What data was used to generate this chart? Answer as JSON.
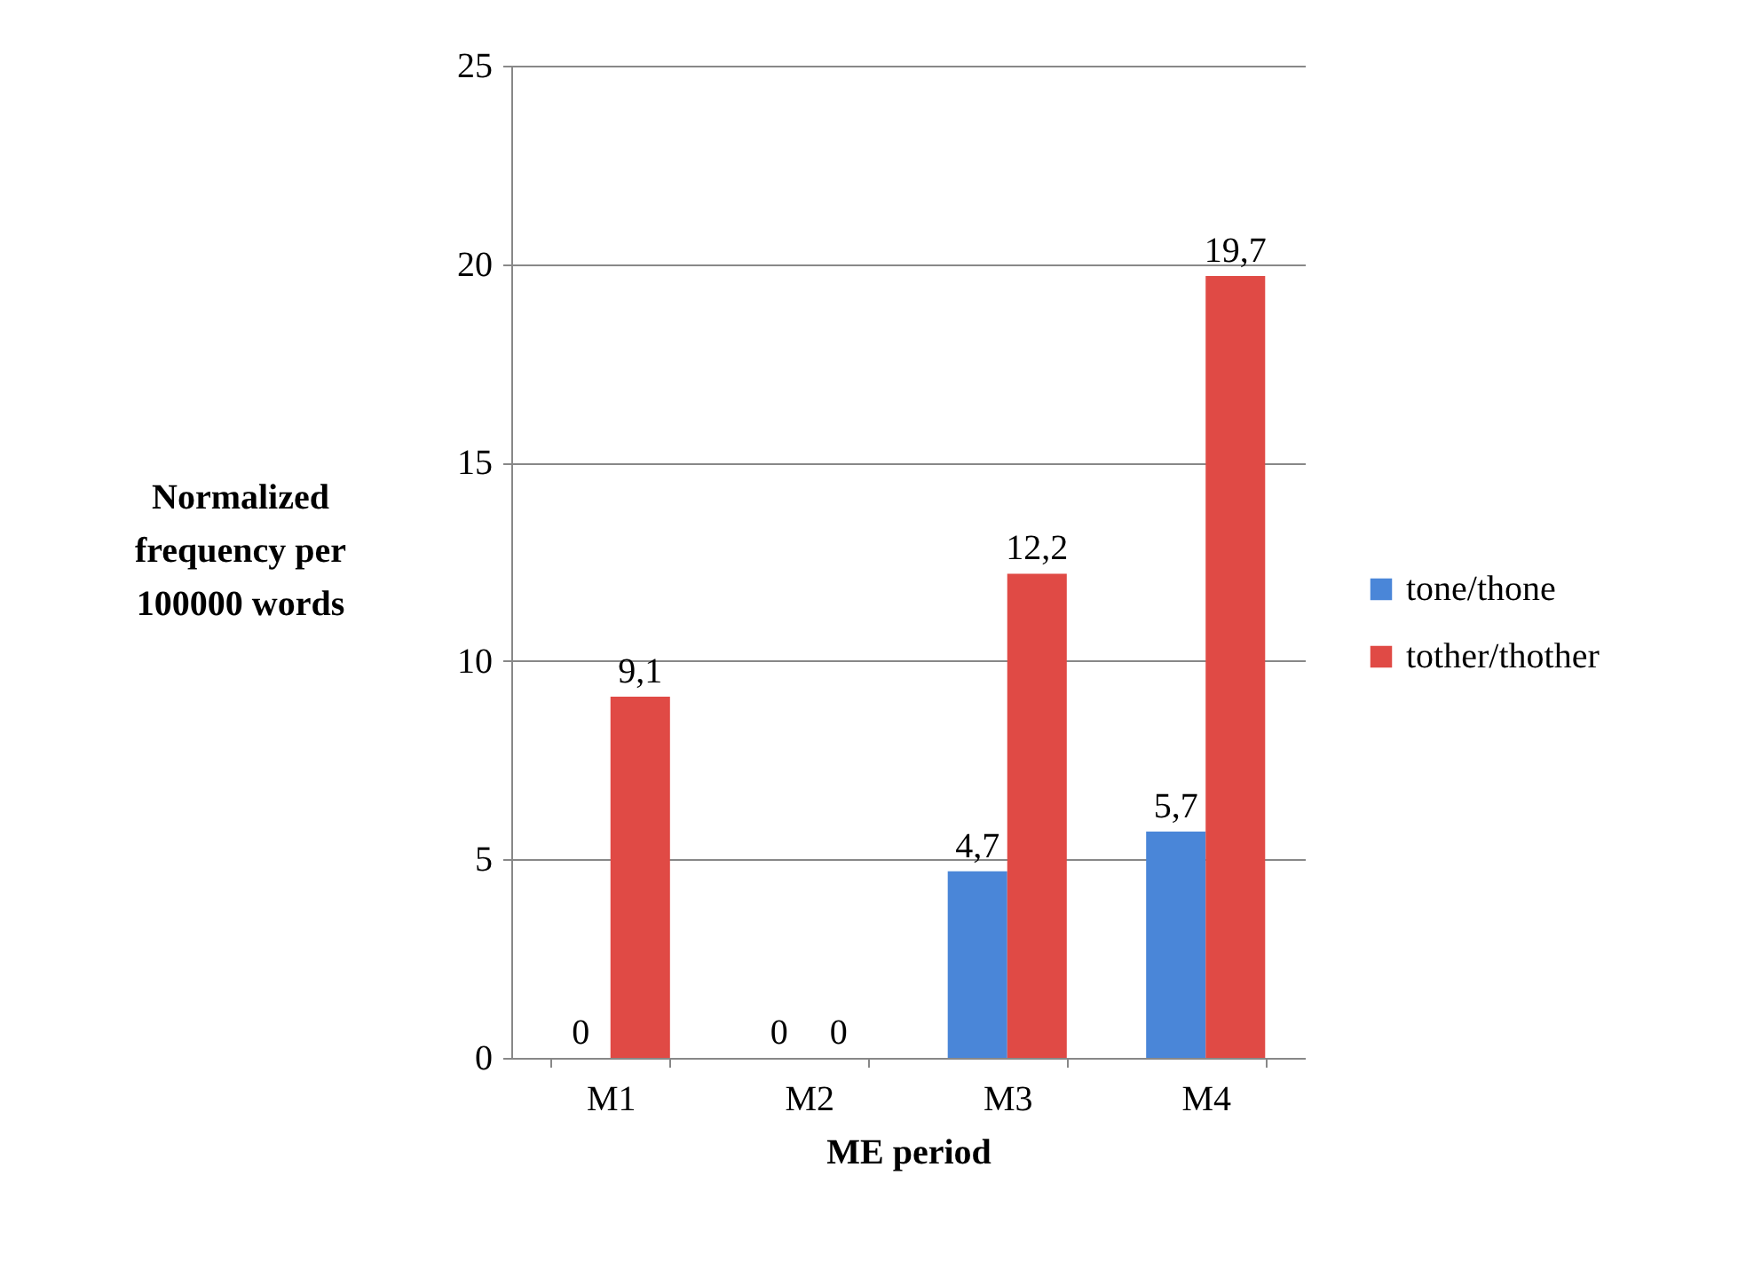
{
  "chart_data": {
    "type": "bar",
    "xlabel": "ME period",
    "ylabel": "Normalized\nfrequency per\n100000 words",
    "categories": [
      "M1",
      "M2",
      "M3",
      "M4"
    ],
    "series": [
      {
        "name": "tone/thone",
        "color": "#4a86d8",
        "values": [
          0,
          0,
          4.7,
          5.7
        ],
        "value_labels": [
          "0",
          "0",
          "4,7",
          "5,7"
        ]
      },
      {
        "name": "tother/thother",
        "color": "#e04a45",
        "values": [
          9.1,
          0,
          12.2,
          19.7
        ],
        "value_labels": [
          "9,1",
          "0",
          "12,2",
          "19,7"
        ]
      }
    ],
    "ylim": [
      0,
      25
    ],
    "yticks": [
      0,
      5,
      10,
      15,
      20,
      25
    ],
    "grid": "y",
    "legend": "right"
  }
}
